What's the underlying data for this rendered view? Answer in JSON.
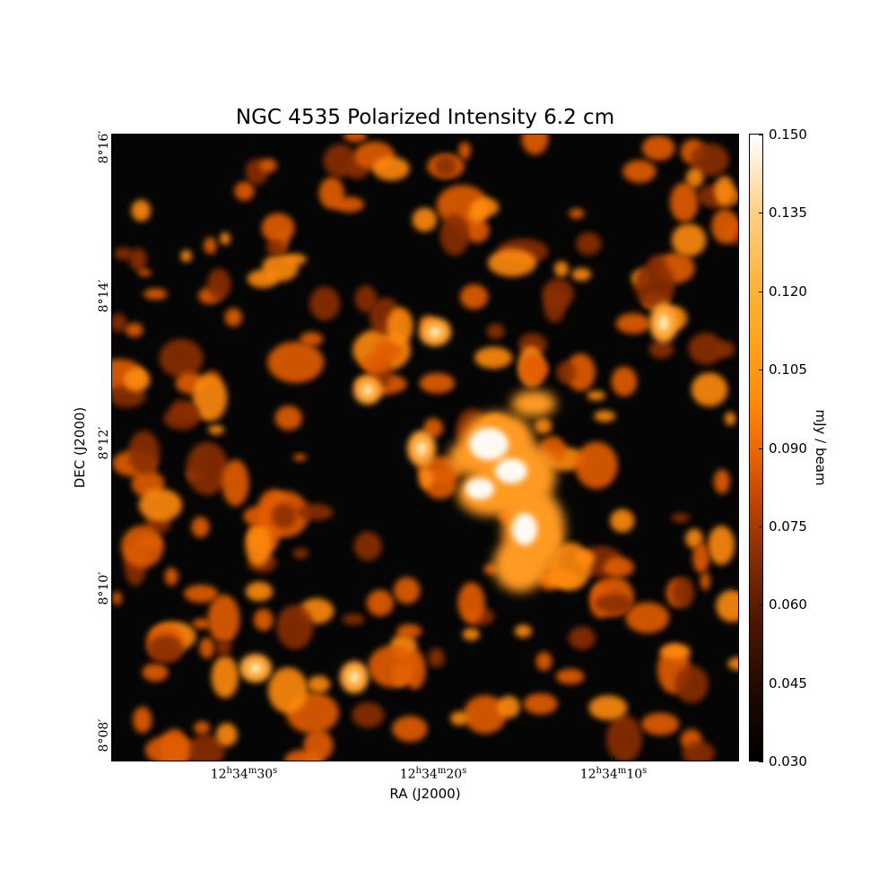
{
  "chart_data": {
    "type": "heatmap",
    "title": "NGC 4535 Polarized Intensity 6.2 cm",
    "xlabel": "RA (J2000)",
    "ylabel": "DEC (J2000)",
    "x_ticks": [
      {
        "label": "12h34m30s",
        "h": "12",
        "m": "34",
        "s": "30",
        "value_seconds_offset": 30
      },
      {
        "label": "12h34m20s",
        "h": "12",
        "m": "34",
        "s": "20",
        "value_seconds_offset": 20
      },
      {
        "label": "12h34m10s",
        "h": "12",
        "m": "34",
        "s": "10",
        "value_seconds_offset": 10
      }
    ],
    "y_ticks": [
      {
        "label": "8°16′",
        "deg": "8",
        "arcmin": "16"
      },
      {
        "label": "8°14′",
        "deg": "8",
        "arcmin": "14"
      },
      {
        "label": "8°12′",
        "deg": "8",
        "arcmin": "12"
      },
      {
        "label": "8°10′",
        "deg": "8",
        "arcmin": "10"
      },
      {
        "label": "8°08′",
        "deg": "8",
        "arcmin": "08"
      }
    ],
    "colorbar": {
      "label": "mJy / beam",
      "range": [
        0.03,
        0.15
      ],
      "ticks": [
        "0.030",
        "0.045",
        "0.060",
        "0.075",
        "0.090",
        "0.105",
        "0.120",
        "0.135",
        "0.150"
      ],
      "colormap": "afmhot",
      "colors": {
        "low": "#000000",
        "mid": "#ff8c0a",
        "high": "#ffffff"
      }
    },
    "grid": false
  }
}
